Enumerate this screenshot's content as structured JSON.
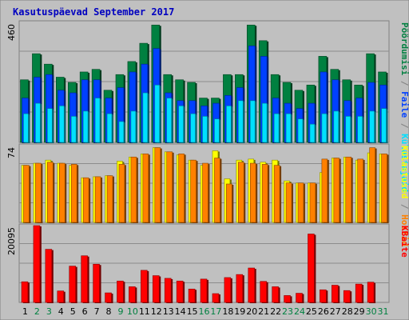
{
  "chart_data": {
    "type": "bar",
    "title": "Kasutuspäevad September 2017",
    "categories": [
      "1",
      "2",
      "3",
      "4",
      "5",
      "6",
      "7",
      "8",
      "9",
      "10",
      "11",
      "12",
      "13",
      "14",
      "15",
      "16",
      "17",
      "18",
      "19",
      "20",
      "21",
      "22",
      "23",
      "24",
      "25",
      "26",
      "27",
      "28",
      "29",
      "30",
      "31"
    ],
    "weekend_days": [
      "2",
      "3",
      "9",
      "10",
      "16",
      "17",
      "23",
      "24",
      "30",
      "31"
    ],
    "panels": [
      {
        "id": "top",
        "ymax_label": "460",
        "ylim": [
          0,
          460
        ],
        "series": [
          {
            "name": "Pöördumisi",
            "color": "#008040",
            "values": [
              240,
              340,
              300,
              250,
              230,
              270,
              280,
              200,
              260,
              310,
              380,
              450,
              260,
              240,
              230,
              170,
              170,
              260,
              260,
              450,
              390,
              260,
              230,
              200,
              220,
              330,
              280,
              240,
              220,
              340,
              270
            ]
          },
          {
            "name": "Faile",
            "color": "#0040ff",
            "values": [
              170,
              250,
              260,
              200,
              190,
              240,
              240,
              170,
              210,
              270,
              300,
              360,
              190,
              160,
              160,
              140,
              150,
              180,
              210,
              370,
              330,
              170,
              150,
              130,
              150,
              270,
              240,
              160,
              170,
              230,
              220
            ]
          },
          {
            "name": "Külastajaid",
            "color": "#00e0ff",
            "values": [
              110,
              150,
              130,
              140,
              100,
              120,
              170,
              110,
              80,
              120,
              190,
              220,
              170,
              140,
              110,
              100,
              90,
              140,
              160,
              160,
              150,
              110,
              110,
              90,
              70,
              110,
              120,
              100,
              100,
              120,
              130
            ]
          }
        ]
      },
      {
        "id": "middle",
        "ymax_label": "74",
        "ylim": [
          0,
          74
        ],
        "series": [
          {
            "name": "Külastused",
            "color": "#ffff00",
            "values": [
              55,
              57,
              60,
              57,
              55,
              43,
              44,
              45,
              59,
              63,
              66,
              72,
              68,
              65,
              60,
              55,
              69,
              42,
              60,
              61,
              58,
              60,
              40,
              38,
              38,
              48,
              62,
              63,
              60,
              67,
              66
            ]
          },
          {
            "name": "Hostid",
            "color": "#ff8000",
            "values": [
              55,
              57,
              58,
              57,
              56,
              43,
              44,
              45,
              56,
              63,
              66,
              72,
              68,
              66,
              60,
              57,
              62,
              37,
              58,
              57,
              56,
              55,
              38,
              38,
              38,
              61,
              62,
              63,
              61,
              72,
              66
            ]
          }
        ]
      },
      {
        "id": "bottom",
        "ymax_label": "20095",
        "ylim": [
          0,
          20095
        ],
        "series": [
          {
            "name": "KBaite",
            "color": "#ff0000",
            "values": [
              5400,
              20095,
              13900,
              3000,
              9500,
              12200,
              10000,
              2500,
              5600,
              4100,
              8400,
              7000,
              6300,
              5600,
              3500,
              6100,
              2300,
              6500,
              7300,
              9000,
              5500,
              4100,
              1800,
              2400,
              17900,
              3300,
              4500,
              3100,
              4800,
              5300,
              0
            ]
          }
        ]
      }
    ],
    "side_labels": {
      "top": [
        {
          "text": "Pöördumisi",
          "color": "#008040"
        },
        {
          "text": " / ",
          "color": "#808080"
        },
        {
          "text": "Faile",
          "color": "#0040ff"
        },
        {
          "text": " / ",
          "color": "#808080"
        },
        {
          "text": "Külastajaid",
          "color": "#00e0ff"
        }
      ],
      "middle": [
        {
          "text": "Külastused",
          "color": "#ffff00"
        },
        {
          "text": " / ",
          "color": "#808080"
        },
        {
          "text": "Hostid",
          "color": "#ff8000"
        }
      ],
      "bottom": [
        {
          "text": "KBaite",
          "color": "#ff0000"
        }
      ]
    }
  }
}
